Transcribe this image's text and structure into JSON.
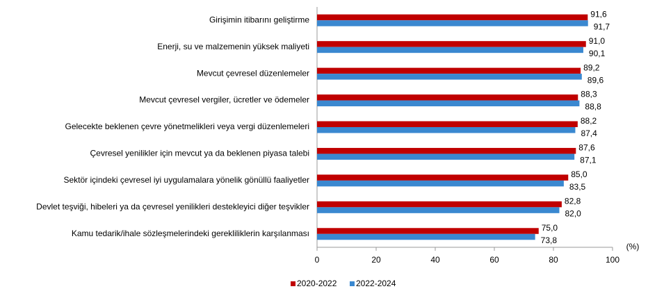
{
  "chart_data": {
    "type": "hbar",
    "categories": [
      "Girişimin itibarını geliştirme",
      "Enerji, su ve malzemenin yüksek maliyeti",
      "Mevcut çevresel düzenlemeler",
      "Mevcut çevresel vergiler, ücretler ve ödemeler",
      "Gelecekte beklenen çevre yönetmelikleri veya vergi düzenlemeleri",
      "Çevresel yenilikler için mevcut ya da beklenen piyasa talebi",
      "Sektör içindeki çevresel iyi uygulamalara yönelik gönüllü faaliyetler",
      "Devlet teşviği, hibeleri ya da çevresel yenilikleri destekleyici diğer teşvikler",
      "Kamu tedarik/ihale sözleşmelerindeki gerekliliklerin karşılanması"
    ],
    "series": [
      {
        "name": "2020-2022",
        "color": "#c00000",
        "values": [
          91.6,
          91.0,
          89.2,
          88.3,
          88.2,
          87.6,
          85.0,
          82.8,
          75.0
        ],
        "value_labels": [
          "91,6",
          "91,0",
          "89,2",
          "88,3",
          "88,2",
          "87,6",
          "85,0",
          "82,8",
          "75,0"
        ]
      },
      {
        "name": "2022-2024",
        "color": "#3a88d0",
        "values": [
          91.7,
          90.1,
          89.6,
          88.8,
          87.4,
          87.1,
          83.5,
          82.0,
          73.8
        ],
        "value_labels": [
          "91,7",
          "90,1",
          "89,6",
          "88,8",
          "87,4",
          "87,1",
          "83,5",
          "82,0",
          "73,8"
        ]
      }
    ],
    "xlim": [
      0,
      100
    ],
    "xticks": [
      0,
      20,
      40,
      60,
      80,
      100
    ],
    "x_unit": "(%)",
    "legend": "bottom"
  }
}
